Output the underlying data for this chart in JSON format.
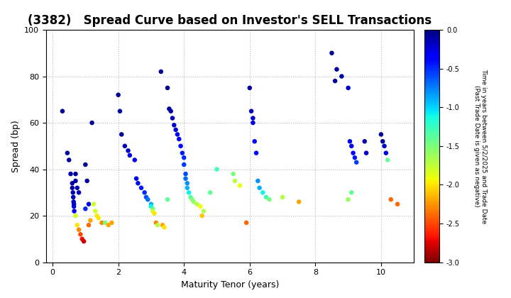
{
  "title": "(3382)   Spread Curve based on Investor's SELL Transactions",
  "xlabel": "Maturity Tenor (years)",
  "ylabel": "Spread (bp)",
  "xlim": [
    -0.2,
    11
  ],
  "ylim": [
    0,
    100
  ],
  "colorbar_label": "Time in years between 5/2/2025 and Trade Date\n(Past Trade Date is given as negative)",
  "cmap": "jet_r",
  "vmin": -3.0,
  "vmax": 0.0,
  "points": [
    [
      0.3,
      65,
      -0.05
    ],
    [
      0.45,
      47,
      -0.08
    ],
    [
      0.5,
      44,
      -0.1
    ],
    [
      0.55,
      38,
      -0.12
    ],
    [
      0.6,
      34,
      -0.08
    ],
    [
      0.6,
      32,
      -0.1
    ],
    [
      0.62,
      30,
      -0.12
    ],
    [
      0.63,
      28,
      -0.15
    ],
    [
      0.64,
      26,
      -0.18
    ],
    [
      0.65,
      25,
      -0.2
    ],
    [
      0.65,
      24,
      -0.25
    ],
    [
      0.66,
      22,
      -0.3
    ],
    [
      0.7,
      38,
      -0.08
    ],
    [
      0.7,
      35,
      -0.1
    ],
    [
      0.75,
      32,
      -0.12
    ],
    [
      0.8,
      30,
      -0.15
    ],
    [
      0.7,
      20,
      -1.8
    ],
    [
      0.75,
      16,
      -2.0
    ],
    [
      0.8,
      14,
      -2.3
    ],
    [
      0.85,
      12,
      -2.5
    ],
    [
      0.9,
      10,
      -2.7
    ],
    [
      0.95,
      9,
      -2.8
    ],
    [
      1.0,
      42,
      -0.05
    ],
    [
      1.05,
      35,
      -0.08
    ],
    [
      1.1,
      25,
      -0.3
    ],
    [
      1.0,
      23,
      -0.5
    ],
    [
      1.15,
      18,
      -2.2
    ],
    [
      1.1,
      16,
      -2.4
    ],
    [
      1.2,
      60,
      -0.08
    ],
    [
      1.25,
      25,
      -1.8
    ],
    [
      1.3,
      22,
      -1.8
    ],
    [
      1.35,
      20,
      -2.0
    ],
    [
      1.4,
      19,
      -2.0
    ],
    [
      1.5,
      17,
      -2.3
    ],
    [
      1.6,
      17,
      -1.5
    ],
    [
      1.7,
      16,
      -2.2
    ],
    [
      1.8,
      17,
      -2.2
    ],
    [
      2.0,
      72,
      -0.05
    ],
    [
      2.05,
      65,
      -0.08
    ],
    [
      2.1,
      55,
      -0.1
    ],
    [
      2.2,
      50,
      -0.15
    ],
    [
      2.3,
      48,
      -0.2
    ],
    [
      2.35,
      46,
      -0.25
    ],
    [
      2.5,
      44,
      -0.3
    ],
    [
      2.55,
      36,
      -0.35
    ],
    [
      2.6,
      34,
      -0.4
    ],
    [
      2.7,
      32,
      -0.45
    ],
    [
      2.8,
      30,
      -0.5
    ],
    [
      2.85,
      28,
      -0.6
    ],
    [
      2.9,
      27,
      -0.7
    ],
    [
      3.0,
      25,
      -0.9
    ],
    [
      3.0,
      24,
      -1.1
    ],
    [
      3.05,
      23,
      -1.4
    ],
    [
      3.05,
      22,
      -1.8
    ],
    [
      3.1,
      21,
      -2.0
    ],
    [
      3.15,
      17,
      -2.3
    ],
    [
      3.2,
      16,
      -1.7
    ],
    [
      3.3,
      82,
      -0.05
    ],
    [
      3.35,
      16,
      -2.2
    ],
    [
      3.4,
      15,
      -2.0
    ],
    [
      3.5,
      27,
      -1.4
    ],
    [
      3.5,
      75,
      -0.05
    ],
    [
      3.55,
      66,
      -0.08
    ],
    [
      3.6,
      65,
      -0.1
    ],
    [
      3.65,
      62,
      -0.15
    ],
    [
      3.7,
      59,
      -0.2
    ],
    [
      3.75,
      57,
      -0.25
    ],
    [
      3.8,
      55,
      -0.3
    ],
    [
      3.85,
      53,
      -0.35
    ],
    [
      3.9,
      50,
      -0.4
    ],
    [
      3.95,
      47,
      -0.45
    ],
    [
      4.0,
      45,
      -0.5
    ],
    [
      4.0,
      42,
      -0.55
    ],
    [
      4.05,
      38,
      -0.6
    ],
    [
      4.05,
      36,
      -0.7
    ],
    [
      4.1,
      34,
      -0.8
    ],
    [
      4.1,
      32,
      -0.9
    ],
    [
      4.15,
      30,
      -1.1
    ],
    [
      4.2,
      28,
      -1.4
    ],
    [
      4.25,
      27,
      -1.5
    ],
    [
      4.3,
      26,
      -1.6
    ],
    [
      4.4,
      25,
      -1.7
    ],
    [
      4.5,
      24,
      -1.9
    ],
    [
      4.55,
      20,
      -2.1
    ],
    [
      4.6,
      22,
      -1.7
    ],
    [
      4.8,
      30,
      -1.4
    ],
    [
      5.0,
      40,
      -1.3
    ],
    [
      5.5,
      38,
      -1.5
    ],
    [
      5.55,
      35,
      -1.7
    ],
    [
      5.7,
      33,
      -1.9
    ],
    [
      5.9,
      17,
      -2.4
    ],
    [
      6.0,
      75,
      -0.1
    ],
    [
      6.05,
      65,
      -0.15
    ],
    [
      6.1,
      62,
      -0.2
    ],
    [
      6.1,
      60,
      -0.25
    ],
    [
      6.15,
      52,
      -0.35
    ],
    [
      6.2,
      47,
      -0.4
    ],
    [
      6.25,
      35,
      -0.8
    ],
    [
      6.3,
      32,
      -0.9
    ],
    [
      6.4,
      30,
      -1.1
    ],
    [
      6.5,
      28,
      -1.3
    ],
    [
      6.6,
      27,
      -1.5
    ],
    [
      7.0,
      28,
      -1.7
    ],
    [
      7.5,
      26,
      -2.2
    ],
    [
      8.5,
      90,
      -0.05
    ],
    [
      8.6,
      78,
      -0.08
    ],
    [
      8.65,
      83,
      -0.1
    ],
    [
      8.8,
      80,
      -0.12
    ],
    [
      9.0,
      75,
      -0.18
    ],
    [
      9.05,
      52,
      -0.25
    ],
    [
      9.1,
      50,
      -0.3
    ],
    [
      9.15,
      47,
      -0.35
    ],
    [
      9.2,
      45,
      -0.45
    ],
    [
      9.25,
      43,
      -0.55
    ],
    [
      9.0,
      27,
      -1.6
    ],
    [
      9.1,
      30,
      -1.4
    ],
    [
      9.5,
      52,
      -0.1
    ],
    [
      9.55,
      47,
      -0.18
    ],
    [
      10.0,
      55,
      -0.05
    ],
    [
      10.05,
      52,
      -0.08
    ],
    [
      10.1,
      50,
      -0.18
    ],
    [
      10.15,
      47,
      -0.28
    ],
    [
      10.2,
      44,
      -1.4
    ],
    [
      10.3,
      27,
      -2.4
    ],
    [
      10.5,
      25,
      -2.4
    ]
  ],
  "background_color": "#ffffff",
  "grid_color": "#bbbbbb",
  "marker_size": 22,
  "title_fontsize": 12
}
